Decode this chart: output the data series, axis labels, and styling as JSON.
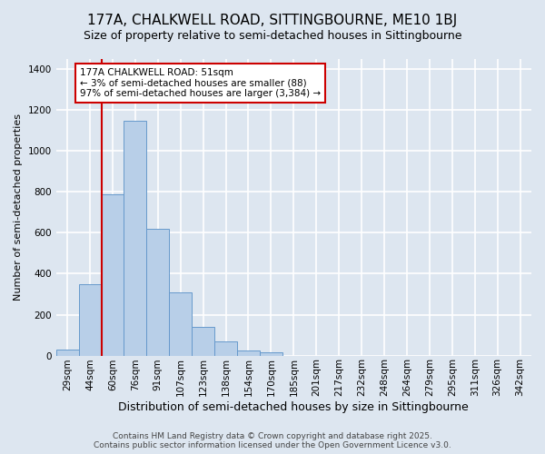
{
  "title_line1": "177A, CHALKWELL ROAD, SITTINGBOURNE, ME10 1BJ",
  "title_line2": "Size of property relative to semi-detached houses in Sittingbourne",
  "xlabel": "Distribution of semi-detached houses by size in Sittingbourne",
  "ylabel": "Number of semi-detached properties",
  "bar_color": "#b8cfe8",
  "bar_edge_color": "#6699cc",
  "background_color": "#dde6f0",
  "categories": [
    "29sqm",
    "44sqm",
    "60sqm",
    "76sqm",
    "91sqm",
    "107sqm",
    "123sqm",
    "138sqm",
    "154sqm",
    "170sqm",
    "185sqm",
    "201sqm",
    "217sqm",
    "232sqm",
    "248sqm",
    "264sqm",
    "279sqm",
    "295sqm",
    "311sqm",
    "326sqm",
    "342sqm"
  ],
  "values": [
    30,
    350,
    790,
    1150,
    620,
    310,
    140,
    70,
    25,
    15,
    0,
    0,
    0,
    0,
    0,
    0,
    0,
    0,
    0,
    0,
    0
  ],
  "ylim": [
    0,
    1450
  ],
  "yticks": [
    0,
    200,
    400,
    600,
    800,
    1000,
    1200,
    1400
  ],
  "annotation_title": "177A CHALKWELL ROAD: 51sqm",
  "annotation_line2": "← 3% of semi-detached houses are smaller (88)",
  "annotation_line3": "97% of semi-detached houses are larger (3,384) →",
  "vline_x": 1.5,
  "footer_line1": "Contains HM Land Registry data © Crown copyright and database right 2025.",
  "footer_line2": "Contains public sector information licensed under the Open Government Licence v3.0.",
  "grid_color": "#ffffff",
  "annotation_box_color": "#ffffff",
  "annotation_box_edge_color": "#cc0000",
  "vline_color": "#cc0000",
  "title_fontsize": 11,
  "subtitle_fontsize": 9,
  "xlabel_fontsize": 9,
  "ylabel_fontsize": 8,
  "tick_fontsize": 7.5,
  "annot_fontsize": 7.5,
  "footer_fontsize": 6.5
}
